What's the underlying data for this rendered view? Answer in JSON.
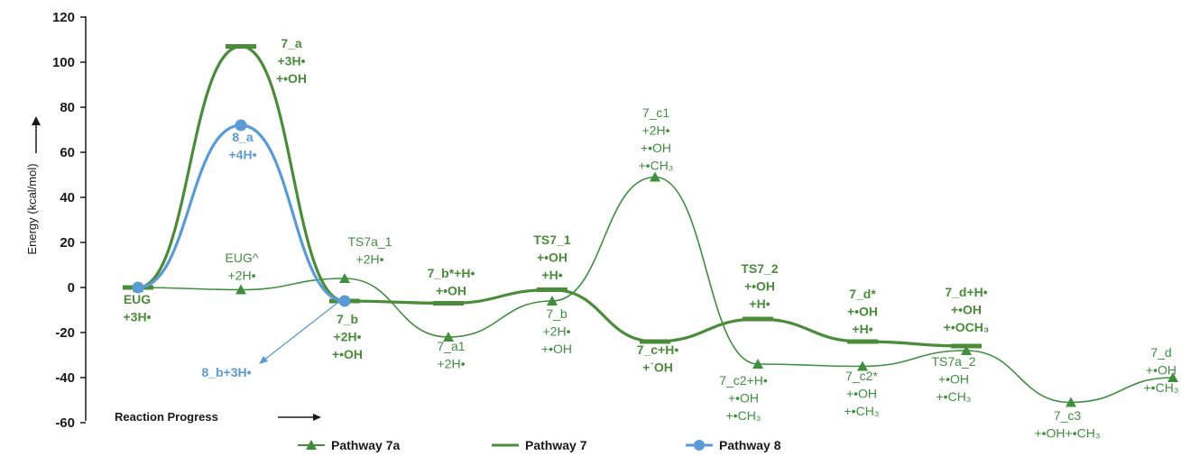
{
  "chart_data": {
    "type": "line",
    "ylabel": "Energy (kcal/mol)",
    "xlabel": "Reaction Progress",
    "ylim": [
      -60,
      120
    ],
    "yticks": [
      -60,
      -40,
      -20,
      0,
      20,
      40,
      60,
      80,
      100,
      120
    ],
    "legend": {
      "placement": "bottom"
    },
    "colors": {
      "pathway_7a": "#3f8f3f",
      "pathway_7": "#4a8c3a",
      "pathway_8": "#5b9bd5",
      "axis": "#1a1a1a"
    },
    "series": [
      {
        "name": "Pathway 7a",
        "x": [
          0,
          1,
          2,
          3,
          4,
          5,
          6,
          7,
          8,
          9,
          10
        ],
        "values": [
          0,
          -1,
          4,
          -22,
          -6,
          49,
          -34,
          -35,
          -28,
          -51,
          -40
        ]
      },
      {
        "name": "Pathway 7",
        "x": [
          0,
          1,
          2,
          3,
          4,
          5,
          6,
          7,
          8
        ],
        "values": [
          0,
          107,
          -6,
          -7,
          -1,
          -24,
          -14,
          -24,
          -26
        ]
      },
      {
        "name": "Pathway 8",
        "x": [
          0,
          1,
          2
        ],
        "values": [
          0,
          72,
          -6
        ]
      }
    ],
    "annotations": [
      {
        "series": 1,
        "lines": [
          "EUG",
          "+3H•"
        ],
        "bold": true
      },
      {
        "series": 1,
        "lines": [
          "7_a",
          "+3H•",
          "+•OH"
        ],
        "bold": true
      },
      {
        "series": 2,
        "lines": [
          "8_a",
          "+4H•"
        ],
        "bold": true
      },
      {
        "series": 0,
        "lines": [
          "EUG^",
          "+2H•"
        ],
        "bold": false
      },
      {
        "series": 0,
        "lines": [
          "TS7a_1",
          "+2H•"
        ],
        "bold": false
      },
      {
        "series": 1,
        "lines": [
          "7_b",
          "+2H•",
          "+•OH"
        ],
        "bold": true
      },
      {
        "series": 2,
        "lines": [
          "8_b+3H•"
        ],
        "bold": true
      },
      {
        "series": 1,
        "lines": [
          "7_b*+H•",
          "+•OH"
        ],
        "bold": true
      },
      {
        "series": 0,
        "lines": [
          "7_a1",
          "+2H•"
        ],
        "bold": false
      },
      {
        "series": 1,
        "lines": [
          "TS7_1",
          "+•OH",
          "+H•"
        ],
        "bold": true
      },
      {
        "series": 0,
        "lines": [
          "7_b",
          "+2H•",
          "+•OH"
        ],
        "bold": false
      },
      {
        "series": 0,
        "lines": [
          "7_c1",
          "+2H•",
          "+•OH",
          "+•CH₃"
        ],
        "bold": false
      },
      {
        "series": 1,
        "lines": [
          "7_c+H•",
          "+˙OH"
        ],
        "bold": true
      },
      {
        "series": 1,
        "lines": [
          "TS7_2",
          "+•OH",
          "+H•"
        ],
        "bold": true
      },
      {
        "series": 0,
        "lines": [
          "7_c2+H•",
          "+•OH",
          "+•CH₃"
        ],
        "bold": false
      },
      {
        "series": 1,
        "lines": [
          "7_d*",
          "+•OH",
          "+H•"
        ],
        "bold": true
      },
      {
        "series": 0,
        "lines": [
          "7_c2*",
          "+•OH",
          "+•CH₃"
        ],
        "bold": false
      },
      {
        "series": 1,
        "lines": [
          "7_d+H•",
          "+•OH",
          "+•OCH₃"
        ],
        "bold": true
      },
      {
        "series": 0,
        "lines": [
          "TS7a_2",
          "+•OH",
          "+•CH₃"
        ],
        "bold": false
      },
      {
        "series": 0,
        "lines": [
          "7_c3",
          "+•OH+•CH₃"
        ],
        "bold": false
      },
      {
        "series": 0,
        "lines": [
          "7_d",
          "+•OH",
          "+•CH₃"
        ],
        "bold": false
      }
    ]
  }
}
